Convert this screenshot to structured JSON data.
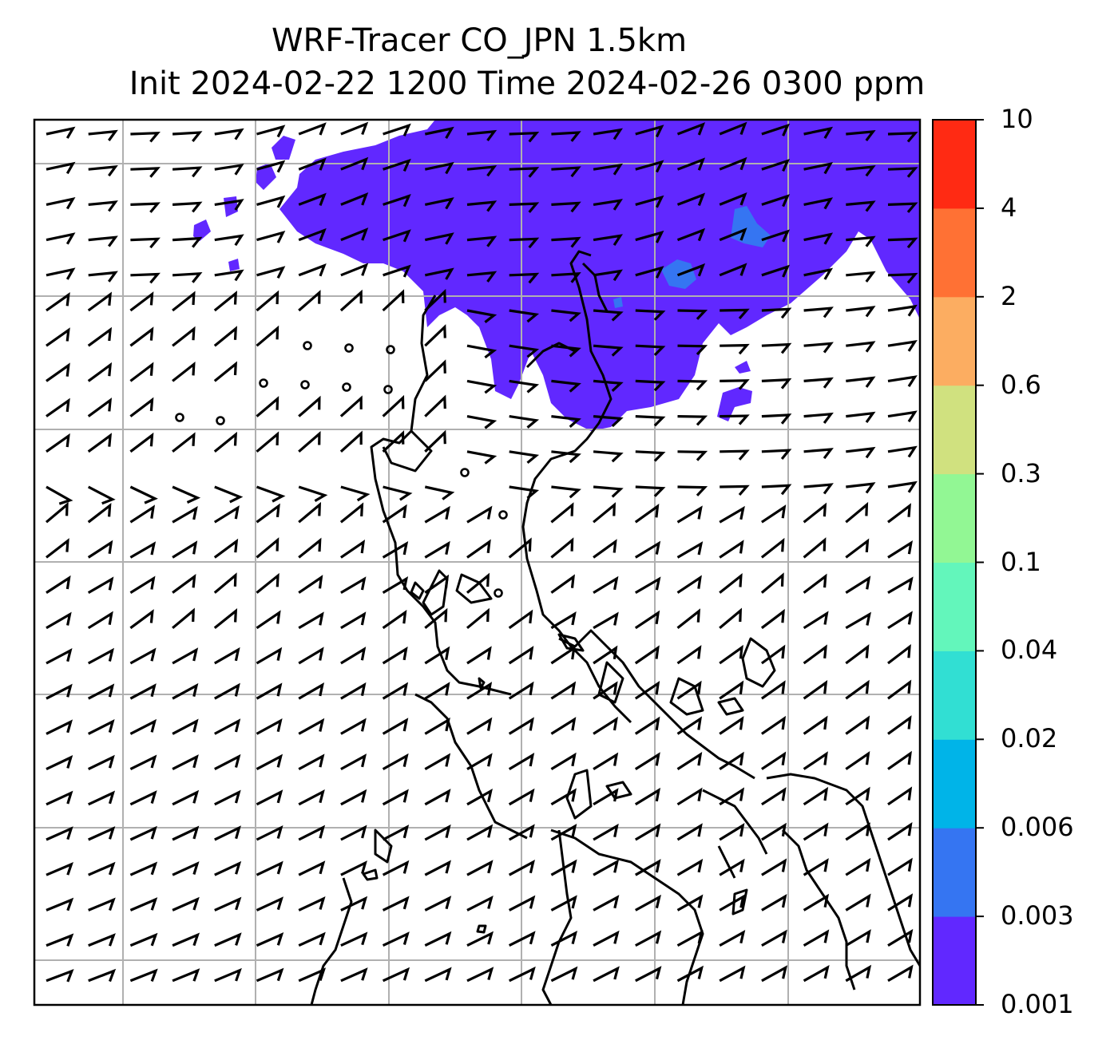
{
  "title": {
    "line1": "WRF-Tracer CO_JPN 1.5km",
    "line2": "Init 2024-02-22 1200 Time 2024-02-26 0300 ppm"
  },
  "colorbar": {
    "levels": [
      "0.001",
      "0.003",
      "0.006",
      "0.02",
      "0.04",
      "0.1",
      "0.3",
      "0.6",
      "2",
      "4",
      "10"
    ],
    "colors": [
      "#6128ff",
      "#3575f2",
      "#00b4e8",
      "#31dfd3",
      "#63f6bb",
      "#92f794",
      "#d0e17f",
      "#fcad61",
      "#ff7134",
      "#ff2a13"
    ]
  },
  "map": {
    "plume_color": "#6128ff",
    "plume_core_color": "#3575f2",
    "grid_color": "#b0b0b0",
    "coast_color": "#000000",
    "barb_color": "#000000",
    "calm_marker": "circle"
  }
}
